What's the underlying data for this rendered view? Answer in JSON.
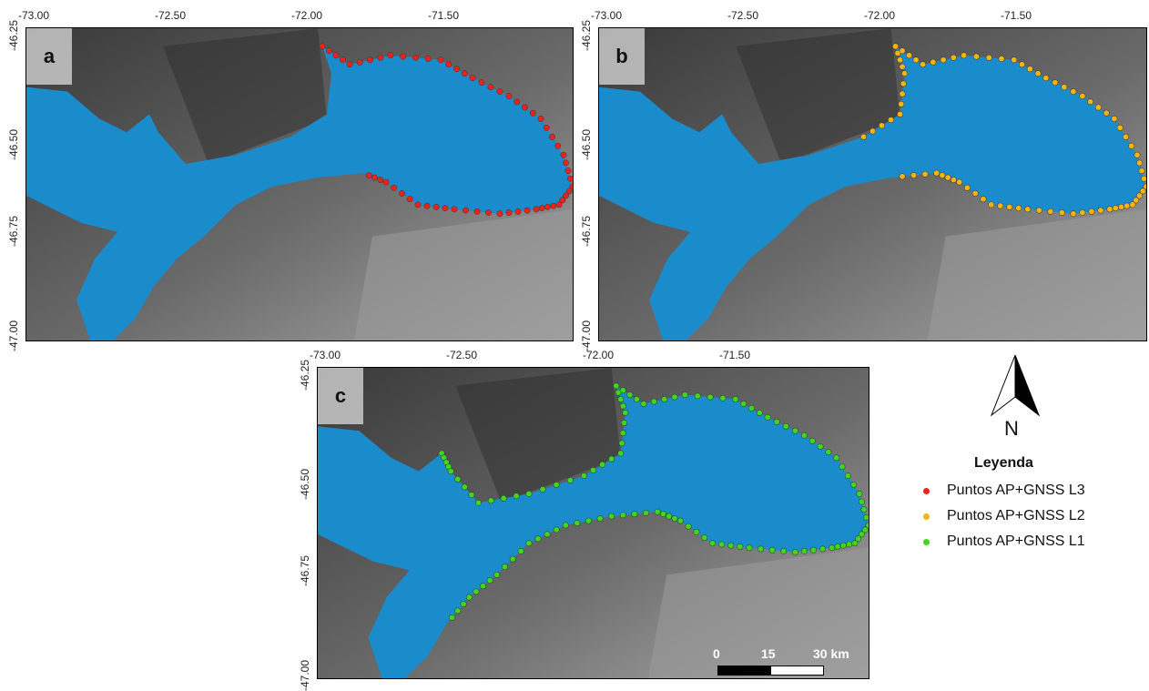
{
  "panels": [
    {
      "label": "a",
      "xticks": [
        "-73.00",
        "-72.50",
        "-72.00",
        "-71.50"
      ],
      "yticks": [
        "-46.25",
        "-46.50",
        "-46.75",
        "-47.00"
      ],
      "dot_color": "#e8231d"
    },
    {
      "label": "b",
      "xticks": [
        "-73.00",
        "-72.50",
        "-72.00",
        "-71.50"
      ],
      "yticks": [
        "-46.25",
        "-46.50",
        "-46.75",
        "-47.00"
      ],
      "dot_color": "#f2b519"
    },
    {
      "label": "c",
      "xticks": [
        "-73.00",
        "-72.50",
        "-72.00",
        "-71.50"
      ],
      "yticks": [
        "-46.25",
        "-46.50",
        "-46.75",
        "-47.00"
      ],
      "dot_color": "#3fd620"
    }
  ],
  "north": "N",
  "legend": {
    "title": "Leyenda",
    "items": [
      "Puntos AP+GNSS  L3",
      "Puntos AP+GNSS  L2",
      "Puntos AP+GNSS  L1"
    ]
  },
  "scale_bar": [
    "0",
    "15",
    "30 km"
  ]
}
